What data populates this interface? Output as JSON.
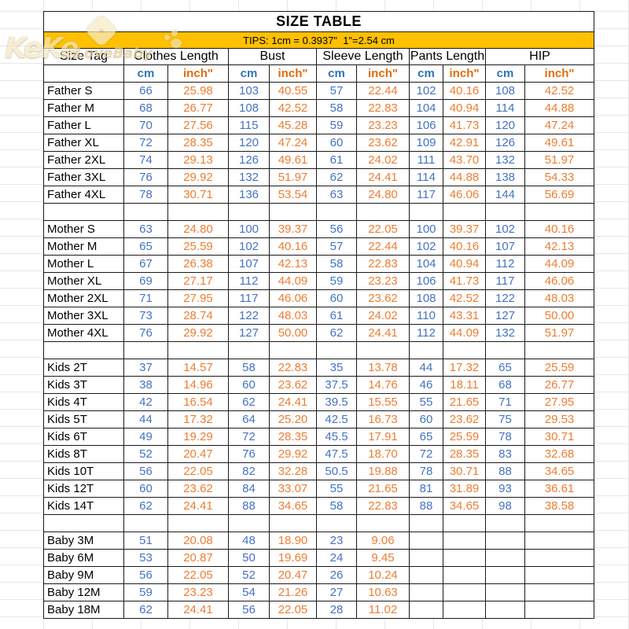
{
  "title": "SIZE TABLE",
  "tips": "TIPS: 1cm = 0.3937\"  1\"=2.54 cm",
  "watermark": {
    "line1": "KeKe",
    "line2": "LoveBaby"
  },
  "columns": {
    "size_tag": "Size Tag",
    "groups": [
      "Clothes Length",
      "Bust",
      "Sleeve Length",
      "Pants Length",
      "HIP"
    ],
    "unit_cm": "cm",
    "unit_inch": "inch\""
  },
  "colors": {
    "tips_bar": "#FFC000",
    "cm_text": "#4472C4",
    "inch_text": "#ED7D31",
    "header_cm": "#2E74B5",
    "header_inch": "#E26B0A",
    "border": "#1a1a1a"
  },
  "sections": [
    {
      "name": "Father",
      "rows": [
        {
          "tag": "Father S",
          "values": [
            "66",
            "25.98",
            "103",
            "40.55",
            "57",
            "22.44",
            "102",
            "40.16",
            "108",
            "42.52"
          ]
        },
        {
          "tag": "Father M",
          "values": [
            "68",
            "26.77",
            "108",
            "42.52",
            "58",
            "22.83",
            "104",
            "40.94",
            "114",
            "44.88"
          ]
        },
        {
          "tag": "Father L",
          "values": [
            "70",
            "27.56",
            "115",
            "45.28",
            "59",
            "23.23",
            "106",
            "41.73",
            "120",
            "47.24"
          ]
        },
        {
          "tag": "Father XL",
          "values": [
            "72",
            "28.35",
            "120",
            "47.24",
            "60",
            "23.62",
            "109",
            "42.91",
            "126",
            "49.61"
          ]
        },
        {
          "tag": "Father 2XL",
          "values": [
            "74",
            "29.13",
            "126",
            "49.61",
            "61",
            "24.02",
            "111",
            "43.70",
            "132",
            "51.97"
          ]
        },
        {
          "tag": "Father 3XL",
          "values": [
            "76",
            "29.92",
            "132",
            "51.97",
            "62",
            "24.41",
            "114",
            "44.88",
            "138",
            "54.33"
          ]
        },
        {
          "tag": "Father 4XL",
          "values": [
            "78",
            "30.71",
            "136",
            "53.54",
            "63",
            "24.80",
            "117",
            "46.06",
            "144",
            "56.69"
          ]
        }
      ]
    },
    {
      "name": "Mother",
      "rows": [
        {
          "tag": "Mother S",
          "values": [
            "63",
            "24.80",
            "100",
            "39.37",
            "56",
            "22.05",
            "100",
            "39.37",
            "102",
            "40.16"
          ]
        },
        {
          "tag": "Mother M",
          "values": [
            "65",
            "25.59",
            "102",
            "40.16",
            "57",
            "22.44",
            "102",
            "40.16",
            "107",
            "42.13"
          ]
        },
        {
          "tag": "Mother L",
          "values": [
            "67",
            "26.38",
            "107",
            "42.13",
            "58",
            "22.83",
            "104",
            "40.94",
            "112",
            "44.09"
          ]
        },
        {
          "tag": "Mother XL",
          "values": [
            "69",
            "27.17",
            "112",
            "44.09",
            "59",
            "23.23",
            "106",
            "41.73",
            "117",
            "46.06"
          ]
        },
        {
          "tag": "Mother 2XL",
          "values": [
            "71",
            "27.95",
            "117",
            "46.06",
            "60",
            "23.62",
            "108",
            "42.52",
            "122",
            "48.03"
          ]
        },
        {
          "tag": "Mother 3XL",
          "values": [
            "73",
            "28.74",
            "122",
            "48.03",
            "61",
            "24.02",
            "110",
            "43.31",
            "127",
            "50.00"
          ]
        },
        {
          "tag": "Mother 4XL",
          "values": [
            "76",
            "29.92",
            "127",
            "50.00",
            "62",
            "24.41",
            "112",
            "44.09",
            "132",
            "51.97"
          ]
        }
      ]
    },
    {
      "name": "Kids",
      "rows": [
        {
          "tag": "Kids 2T",
          "values": [
            "37",
            "14.57",
            "58",
            "22.83",
            "35",
            "13.78",
            "44",
            "17.32",
            "65",
            "25.59"
          ]
        },
        {
          "tag": "Kids 3T",
          "values": [
            "38",
            "14.96",
            "60",
            "23.62",
            "37.5",
            "14.76",
            "46",
            "18.11",
            "68",
            "26.77"
          ]
        },
        {
          "tag": "Kids 4T",
          "values": [
            "42",
            "16.54",
            "62",
            "24.41",
            "39.5",
            "15.55",
            "55",
            "21.65",
            "71",
            "27.95"
          ]
        },
        {
          "tag": "Kids 5T",
          "values": [
            "44",
            "17.32",
            "64",
            "25.20",
            "42.5",
            "16.73",
            "60",
            "23.62",
            "75",
            "29.53"
          ]
        },
        {
          "tag": "Kids 6T",
          "values": [
            "49",
            "19.29",
            "72",
            "28.35",
            "45.5",
            "17.91",
            "65",
            "25.59",
            "78",
            "30.71"
          ]
        },
        {
          "tag": "Kids 8T",
          "values": [
            "52",
            "20.47",
            "76",
            "29.92",
            "47.5",
            "18.70",
            "72",
            "28.35",
            "83",
            "32.68"
          ]
        },
        {
          "tag": "Kids 10T",
          "values": [
            "56",
            "22.05",
            "82",
            "32.28",
            "50.5",
            "19.88",
            "78",
            "30.71",
            "88",
            "34.65"
          ]
        },
        {
          "tag": "Kids 12T",
          "values": [
            "60",
            "23.62",
            "84",
            "33.07",
            "55",
            "21.65",
            "81",
            "31.89",
            "93",
            "36.61"
          ]
        },
        {
          "tag": "Kids 14T",
          "values": [
            "62",
            "24.41",
            "88",
            "34.65",
            "58",
            "22.83",
            "88",
            "34.65",
            "98",
            "38.58"
          ]
        }
      ]
    },
    {
      "name": "Baby",
      "rows": [
        {
          "tag": "Baby 3M",
          "values": [
            "51",
            "20.08",
            "48",
            "18.90",
            "23",
            "9.06",
            "",
            "",
            "",
            ""
          ]
        },
        {
          "tag": "Baby 6M",
          "values": [
            "53",
            "20.87",
            "50",
            "19.69",
            "24",
            "9.45",
            "",
            "",
            "",
            ""
          ]
        },
        {
          "tag": "Baby 9M",
          "values": [
            "56",
            "22.05",
            "52",
            "20.47",
            "26",
            "10.24",
            "",
            "",
            "",
            ""
          ]
        },
        {
          "tag": "Baby 12M",
          "values": [
            "59",
            "23.23",
            "54",
            "21.26",
            "27",
            "10.63",
            "",
            "",
            "",
            ""
          ]
        },
        {
          "tag": "Baby 18M",
          "values": [
            "62",
            "24.41",
            "56",
            "22.05",
            "28",
            "11.02",
            "",
            "",
            "",
            ""
          ]
        }
      ]
    }
  ]
}
